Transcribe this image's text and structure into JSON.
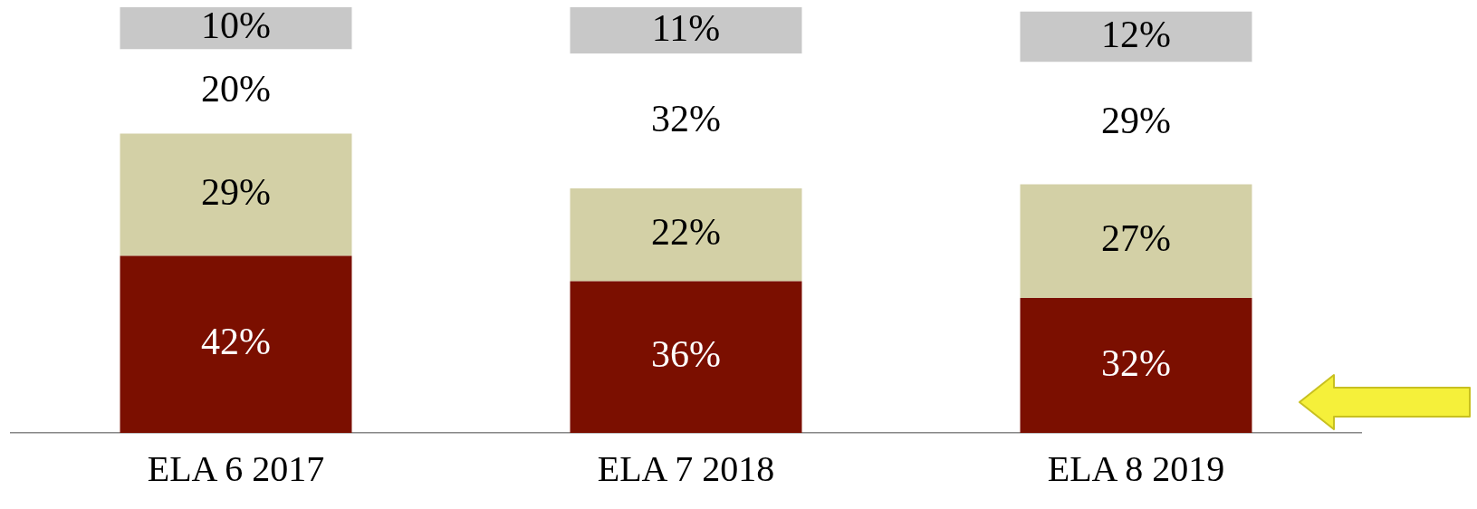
{
  "chart_data": {
    "type": "bar",
    "stacked": true,
    "grid": false,
    "legend": false,
    "categories": [
      "ELA 6 2017",
      "ELA 7 2018",
      "ELA 8 2019"
    ],
    "series": [
      {
        "color": "#7b0f00",
        "values": [
          42,
          36,
          32
        ],
        "value_labels": [
          "42%",
          "36%",
          "32%"
        ]
      },
      {
        "color": "#d3d0a6",
        "values": [
          29,
          22,
          27
        ],
        "value_labels": [
          "29%",
          "22%",
          "27%"
        ]
      },
      {
        "color": "#ffffff",
        "values": [
          20,
          32,
          29
        ],
        "value_labels": [
          "20%",
          "32%",
          "29%"
        ]
      },
      {
        "color": "#c8c8c8",
        "values": [
          10,
          11,
          12
        ],
        "value_labels": [
          "10%",
          "11%",
          "12%"
        ]
      }
    ]
  }
}
